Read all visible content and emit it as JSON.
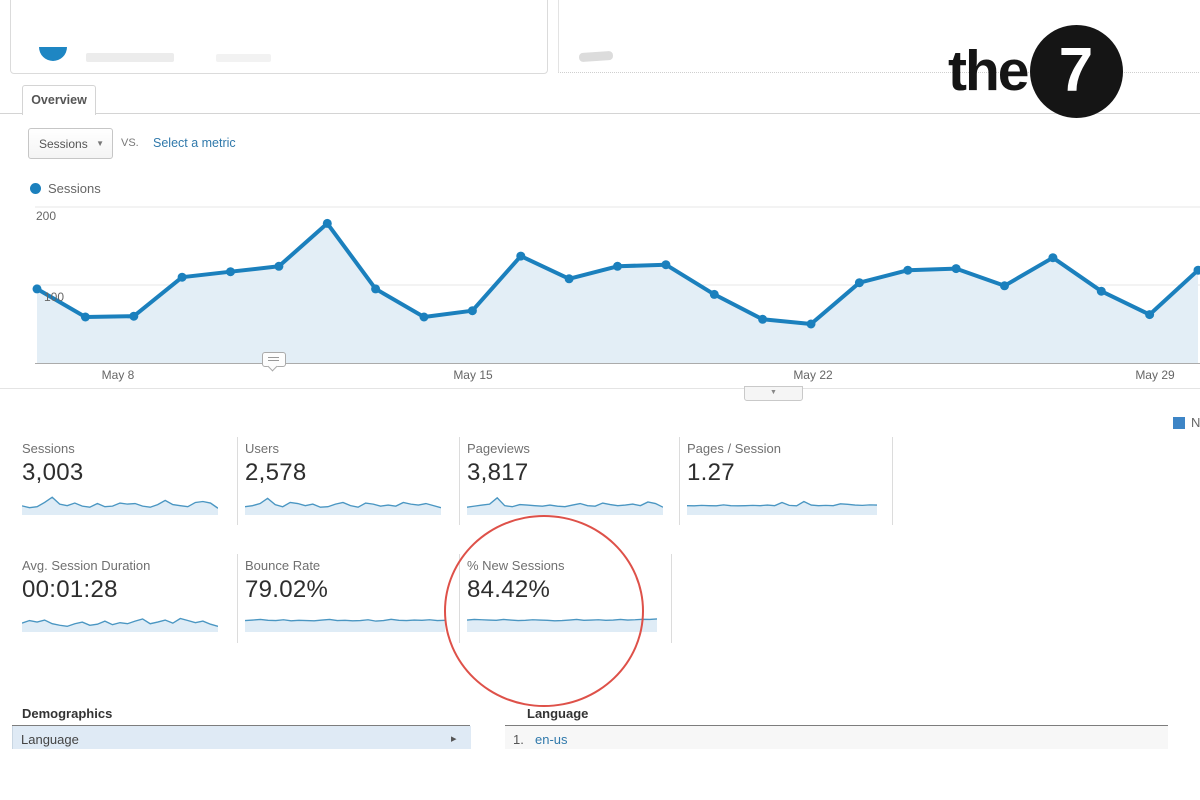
{
  "logo": {
    "text": "the",
    "number": "7"
  },
  "tabs": {
    "overview_label": "Overview"
  },
  "metric_selector": {
    "selected_metric": "Sessions",
    "vs_label": "VS.",
    "select_metric_label": "Select a metric"
  },
  "chart_legend": {
    "series_label": "Sessions"
  },
  "chart_data": {
    "type": "line",
    "title": "Sessions over time (daily)",
    "series": [
      {
        "name": "Sessions",
        "values": [
          95,
          59,
          60,
          110,
          117,
          124,
          179,
          95,
          59,
          67,
          137,
          108,
          124,
          126,
          88,
          56,
          50,
          103,
          119,
          121,
          99,
          135,
          92,
          62,
          119
        ]
      }
    ],
    "x_tick_labels": [
      "May 8",
      "May 15",
      "May 22",
      "May 29"
    ],
    "y_ticks": [
      100,
      200
    ],
    "ylim": [
      0,
      210
    ],
    "grid": true,
    "legend_position": "top-left",
    "line_color": "#1b80bd",
    "area_color": "#e3eef6"
  },
  "partial_right_legend": {
    "label": "N",
    "color": "#3d85c6"
  },
  "scorecards": {
    "row1": [
      {
        "label": "Sessions",
        "value": "3,003",
        "spark": [
          3.5,
          2.8,
          3.2,
          4.8,
          6.8,
          4.2,
          3.6,
          4.6,
          3.4,
          3.0,
          4.4,
          3.2,
          3.4,
          4.6,
          4.2,
          4.4,
          3.4,
          3.0,
          4.0,
          5.6,
          4.0,
          3.6,
          3.2,
          4.8,
          5.2,
          4.6,
          2.6
        ]
      },
      {
        "label": "Users",
        "value": "2,578",
        "spark": [
          3.2,
          3.6,
          4.4,
          6.4,
          4.0,
          3.2,
          4.8,
          4.4,
          3.6,
          4.2,
          3.0,
          3.2,
          4.2,
          4.8,
          3.6,
          3.0,
          4.6,
          4.2,
          3.4,
          3.8,
          3.4,
          4.8,
          4.2,
          3.8,
          4.4,
          3.6,
          2.8
        ]
      },
      {
        "label": "Pageviews",
        "value": "3,817",
        "spark": [
          3.0,
          3.4,
          3.8,
          4.2,
          6.6,
          3.6,
          3.2,
          4.0,
          3.8,
          3.6,
          3.4,
          3.8,
          3.4,
          3.2,
          3.8,
          4.4,
          3.6,
          3.4,
          4.6,
          4.0,
          3.6,
          3.8,
          4.2,
          3.6,
          5.0,
          4.4,
          3.0
        ]
      },
      {
        "label": "Pages / Session",
        "value": "1.27",
        "spark": [
          3.6,
          3.5,
          3.7,
          3.6,
          3.5,
          3.9,
          3.6,
          3.5,
          3.6,
          3.7,
          3.6,
          3.8,
          3.6,
          4.8,
          3.7,
          3.5,
          5.2,
          3.8,
          3.6,
          3.7,
          3.6,
          4.3,
          4.1,
          3.8,
          3.7,
          3.9,
          3.8
        ]
      }
    ],
    "row2": [
      {
        "label": "Avg. Session Duration",
        "value": "00:01:28",
        "spark": [
          3.4,
          4.4,
          3.8,
          4.6,
          3.2,
          2.6,
          2.2,
          3.2,
          3.8,
          2.6,
          3.0,
          4.2,
          2.8,
          3.6,
          3.2,
          4.2,
          5.0,
          3.2,
          3.8,
          4.6,
          3.4,
          5.2,
          4.4,
          3.6,
          4.2,
          3.0,
          2.2
        ]
      },
      {
        "label": "Bounce Rate",
        "value": "79.02%",
        "spark": [
          4.4,
          4.6,
          4.8,
          4.5,
          4.4,
          4.7,
          4.3,
          4.5,
          4.4,
          4.3,
          4.6,
          4.8,
          4.4,
          4.5,
          4.3,
          4.4,
          4.7,
          4.2,
          4.4,
          4.9,
          4.5,
          4.4,
          4.6,
          4.5,
          4.7,
          4.4,
          4.5
        ]
      },
      {
        "label": "% New Sessions",
        "value": "84.42%",
        "spark": [
          4.6,
          4.8,
          4.7,
          4.6,
          4.5,
          4.8,
          4.6,
          4.4,
          4.5,
          4.7,
          4.6,
          4.5,
          4.3,
          4.4,
          4.6,
          4.8,
          4.5,
          4.6,
          4.7,
          4.5,
          4.6,
          4.8,
          4.6,
          4.7,
          4.9,
          4.8,
          5.0
        ]
      }
    ]
  },
  "demographics": {
    "section_title": "Demographics",
    "nav_selected": "Language",
    "table_title": "Language",
    "rows": [
      {
        "rank": "1.",
        "value": "en-us"
      }
    ]
  },
  "icons": {
    "caret_down": "▼",
    "collapse_caret": "▼",
    "nav_arrow": "▸"
  },
  "annotation_highlight": {
    "color": "#de5149"
  }
}
